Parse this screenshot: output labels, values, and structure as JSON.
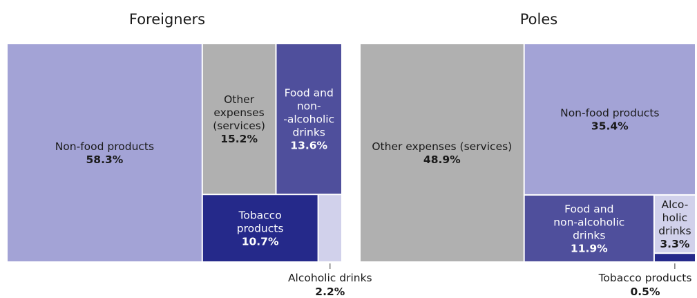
{
  "chart_data": [
    {
      "type": "treemap",
      "title": "Foreigners",
      "unit": "%",
      "items": [
        {
          "name": "Non-food products",
          "label_lines": [
            "Non-food products"
          ],
          "value": 58.3,
          "value_label": "58.3%",
          "color": "#a3a3d6",
          "text_color": "#1a1a1a"
        },
        {
          "name": "Other expenses (services)",
          "label_lines": [
            "Other",
            "expenses",
            "(services)"
          ],
          "value": 15.2,
          "value_label": "15.2%",
          "color": "#b0b0b0",
          "text_color": "#1a1a1a"
        },
        {
          "name": "Food and non-alcoholic drinks",
          "label_lines": [
            "Food and",
            "non-",
            "-alcoholic",
            "drinks"
          ],
          "value": 13.6,
          "value_label": "13.6%",
          "color": "#4f4f9c",
          "text_color": "#ffffff"
        },
        {
          "name": "Tobacco products",
          "label_lines": [
            "Tobacco",
            "products"
          ],
          "value": 10.7,
          "value_label": "10.7%",
          "color": "#25298a",
          "text_color": "#ffffff"
        },
        {
          "name": "Alcoholic drinks",
          "label_lines": [
            "Alcoholic drinks"
          ],
          "value": 2.2,
          "value_label": "2.2%",
          "color": "#d1d1eb",
          "text_color": "#1a1a1a",
          "label_outside": true
        }
      ]
    },
    {
      "type": "treemap",
      "title": "Poles",
      "unit": "%",
      "items": [
        {
          "name": "Other expenses (services)",
          "label_lines": [
            "Other expenses (services)"
          ],
          "value": 48.9,
          "value_label": "48.9%",
          "color": "#b0b0b0",
          "text_color": "#1a1a1a"
        },
        {
          "name": "Non-food products",
          "label_lines": [
            "Non-food products"
          ],
          "value": 35.4,
          "value_label": "35.4%",
          "color": "#a3a3d6",
          "text_color": "#1a1a1a"
        },
        {
          "name": "Food and non-alcoholic drinks",
          "label_lines": [
            "Food and",
            "non-alcoholic",
            "drinks"
          ],
          "value": 11.9,
          "value_label": "11.9%",
          "color": "#4f4f9c",
          "text_color": "#ffffff"
        },
        {
          "name": "Alcoholic drinks",
          "label_lines": [
            "Alco-",
            "holic",
            "drinks"
          ],
          "value": 3.3,
          "value_label": "3.3%",
          "color": "#d1d1eb",
          "text_color": "#1a1a1a"
        },
        {
          "name": "Tobacco products",
          "label_lines": [
            "Tobacco products"
          ],
          "value": 0.5,
          "value_label": "0.5%",
          "color": "#25298a",
          "text_color": "#ffffff",
          "label_outside": true
        }
      ]
    }
  ]
}
